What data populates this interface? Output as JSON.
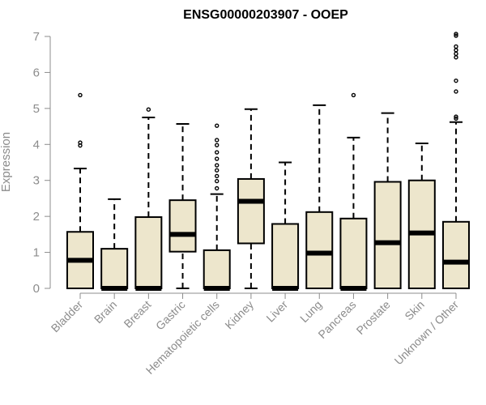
{
  "chart_data": {
    "type": "boxplot",
    "title": "ENSG00000203907 - OOEP",
    "xlabel": "",
    "ylabel": "Expression",
    "ylim": [
      0,
      7
    ],
    "yticks": [
      0,
      1,
      2,
      3,
      4,
      5,
      6,
      7
    ],
    "grid": false,
    "legend": "none",
    "box_color": "#ede6cc",
    "categories": [
      "Bladder",
      "Brain",
      "Breast",
      "Gastric",
      "Hematopoietic cells",
      "Kidney",
      "Liver",
      "Lung",
      "Pancreas",
      "Prostate",
      "Skin",
      "Unknown / Other"
    ],
    "boxes": [
      {
        "category": "Bladder",
        "q1": 0,
        "median": 0.78,
        "q3": 1.57,
        "whisker_low": 0,
        "whisker_high": 3.33,
        "outliers": [
          3.97,
          4.05,
          5.37
        ]
      },
      {
        "category": "Brain",
        "q1": 0,
        "median": 0,
        "q3": 1.1,
        "whisker_low": 0,
        "whisker_high": 2.48,
        "outliers": []
      },
      {
        "category": "Breast",
        "q1": 0,
        "median": 0,
        "q3": 1.98,
        "whisker_low": 0,
        "whisker_high": 4.75,
        "outliers": [
          4.97
        ]
      },
      {
        "category": "Gastric",
        "q1": 1.02,
        "median": 1.5,
        "q3": 2.45,
        "whisker_low": 0,
        "whisker_high": 4.57,
        "outliers": []
      },
      {
        "category": "Hematopoietic cells",
        "q1": 0,
        "median": 0,
        "q3": 1.06,
        "whisker_low": 0,
        "whisker_high": 2.62,
        "outliers": [
          2.78,
          2.98,
          3.12,
          3.28,
          3.42,
          3.6,
          3.78,
          3.98,
          4.12,
          4.52
        ]
      },
      {
        "category": "Kidney",
        "q1": 1.25,
        "median": 2.42,
        "q3": 3.04,
        "whisker_low": 0,
        "whisker_high": 4.98,
        "outliers": []
      },
      {
        "category": "Liver",
        "q1": 0,
        "median": 0,
        "q3": 1.79,
        "whisker_low": 0,
        "whisker_high": 3.5,
        "outliers": []
      },
      {
        "category": "Lung",
        "q1": 0,
        "median": 0.98,
        "q3": 2.12,
        "whisker_low": 0,
        "whisker_high": 5.09,
        "outliers": []
      },
      {
        "category": "Pancreas",
        "q1": 0,
        "median": 0,
        "q3": 1.94,
        "whisker_low": 0,
        "whisker_high": 4.19,
        "outliers": [
          5.37
        ]
      },
      {
        "category": "Prostate",
        "q1": 0,
        "median": 1.27,
        "q3": 2.96,
        "whisker_low": 0,
        "whisker_high": 4.87,
        "outliers": []
      },
      {
        "category": "Skin",
        "q1": 0,
        "median": 1.54,
        "q3": 3.0,
        "whisker_low": 0,
        "whisker_high": 4.03,
        "outliers": []
      },
      {
        "category": "Unknown / Other",
        "q1": 0,
        "median": 0.73,
        "q3": 1.85,
        "whisker_low": 0,
        "whisker_high": 4.62,
        "outliers": [
          4.72,
          4.77,
          5.47,
          5.77,
          6.42,
          6.52,
          6.62,
          6.72,
          7.02,
          7.07
        ]
      }
    ]
  }
}
